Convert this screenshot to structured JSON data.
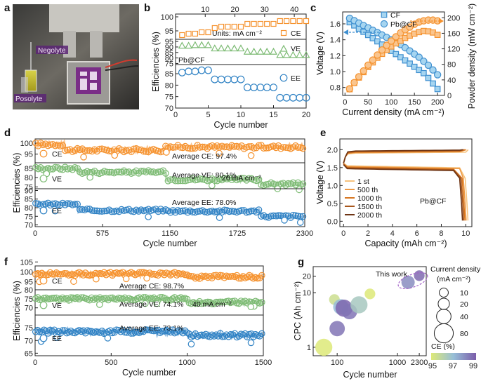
{
  "figure": {
    "panel_labels": [
      "a",
      "b",
      "c",
      "d",
      "e",
      "f",
      "g"
    ],
    "photo": {
      "negolyte_label": "Negolyte",
      "posolyte_label": "Posolyte"
    }
  },
  "colors": {
    "orange": "#F5922E",
    "green": "#7DBB74",
    "blue": "#2F82C4",
    "lightblue": "#9FD3EC",
    "purple": "#A15FC7"
  },
  "chart_data": [
    {
      "id": "b",
      "type": "scatter",
      "xlabel": "Cycle number",
      "ylabel": "Efficiencies (%)",
      "xlim": [
        0,
        20
      ],
      "xticks": [
        0,
        5,
        10,
        15,
        20
      ],
      "top_axis": {
        "ticks": [
          10,
          20,
          30,
          40
        ]
      },
      "units_text": "Units: mA cm⁻²",
      "sample_text": "Pb@CF",
      "subpanels": [
        {
          "name": "CE",
          "ylim": [
            92,
            101
          ],
          "yticks": [
            95,
            100
          ],
          "x": [
            1,
            2,
            3,
            4,
            5,
            6,
            7,
            8,
            9,
            10,
            11,
            12,
            13,
            14,
            15,
            16,
            17,
            18,
            19,
            20
          ],
          "y": [
            93.5,
            94,
            94,
            94.5,
            94.5,
            96,
            96.5,
            96.5,
            96.5,
            96.5,
            97.5,
            97.5,
            97.5,
            97.5,
            97.5,
            98.5,
            98.5,
            98.5,
            98.5,
            98.5
          ]
        },
        {
          "name": "VE",
          "ylim": [
            74,
            97
          ],
          "yticks": [
            75,
            80,
            85,
            90,
            95
          ],
          "x": [
            1,
            2,
            3,
            4,
            5,
            6,
            7,
            8,
            9,
            10,
            11,
            12,
            13,
            14,
            15,
            16,
            17,
            18,
            19,
            20
          ],
          "y": [
            91.5,
            91.5,
            92,
            92,
            92,
            89,
            89,
            89,
            89,
            89,
            86,
            86,
            86,
            86,
            86,
            83,
            83,
            83,
            83,
            83
          ]
        },
        {
          "name": "EE",
          "ylim": [
            70,
            89
          ],
          "yticks": [
            70,
            75,
            80,
            85
          ],
          "x": [
            1,
            2,
            3,
            4,
            5,
            6,
            7,
            8,
            9,
            10,
            11,
            12,
            13,
            14,
            15,
            16,
            17,
            18,
            19,
            20
          ],
          "y": [
            85.5,
            86,
            86,
            86.5,
            86.5,
            82.5,
            82.5,
            82.5,
            82.5,
            82.5,
            79,
            79,
            79,
            79,
            79,
            74.5,
            74.5,
            74.5,
            74.5,
            74.5
          ]
        }
      ]
    },
    {
      "id": "c",
      "type": "line",
      "xlabel": "Current density (mA cm⁻²)",
      "ylabel": "Voltage (V)",
      "y2label": "Powder density (mW cm⁻²)",
      "xlim": [
        -5,
        215
      ],
      "xticks": [
        0,
        50,
        100,
        150,
        200
      ],
      "ylim": [
        0.7,
        1.75
      ],
      "yticks": [
        0.8,
        1.0,
        1.2,
        1.4,
        1.6
      ],
      "y2lim": [
        0,
        215
      ],
      "y2ticks": [
        0,
        40,
        80,
        120,
        160,
        200
      ],
      "x": [
        10,
        20,
        30,
        40,
        50,
        60,
        70,
        80,
        90,
        100,
        110,
        120,
        130,
        140,
        150,
        160,
        170,
        180,
        190,
        200
      ],
      "series": [
        {
          "name": "CF",
          "y": [
            1.62,
            1.58,
            1.54,
            1.5,
            1.46,
            1.42,
            1.38,
            1.34,
            1.3,
            1.26,
            1.22,
            1.18,
            1.14,
            1.1,
            1.06,
            1.02,
            0.98,
            0.92,
            0.85,
            0.78
          ]
        },
        {
          "name": "Pb@CF",
          "y": [
            1.67,
            1.64,
            1.61,
            1.58,
            1.55,
            1.52,
            1.49,
            1.46,
            1.43,
            1.4,
            1.37,
            1.34,
            1.3,
            1.26,
            1.22,
            1.18,
            1.13,
            1.08,
            1.02,
            0.96
          ]
        },
        {
          "name": "CF power",
          "axis": "y2",
          "y": [
            16,
            32,
            46,
            60,
            73,
            85,
            97,
            107,
            117,
            126,
            134,
            141,
            148,
            154,
            159,
            163,
            166,
            165,
            162,
            156
          ]
        },
        {
          "name": "Pb@CF power",
          "axis": "y2",
          "y": [
            17,
            33,
            48,
            63,
            78,
            91,
            104,
            117,
            129,
            140,
            151,
            161,
            169,
            176,
            183,
            189,
            192,
            194,
            194,
            192
          ]
        }
      ]
    },
    {
      "id": "d",
      "type": "scatter",
      "xlabel": "Cycle number",
      "ylabel": "Efficiencies (%)",
      "xlim": [
        0,
        2300
      ],
      "xticks": [
        0,
        575,
        1150,
        1725,
        2300
      ],
      "rate_text": "20 mA cm⁻²",
      "subpanels": [
        {
          "name": "CE",
          "avg_text": "Average CE: 97.4%",
          "ylim": [
            91,
            102
          ],
          "yticks": [
            95,
            100
          ],
          "series_color": "orange"
        },
        {
          "name": "VE",
          "avg_text": "Average VE: 80.1%",
          "ylim": [
            74,
            88
          ],
          "yticks": [
            75,
            80,
            85
          ],
          "series_color": "green"
        },
        {
          "name": "EE",
          "avg_text": "Average  EE: 78.0%",
          "ylim": [
            69,
            91
          ],
          "yticks": [
            70,
            75,
            80,
            85,
            90
          ],
          "series_color": "blue"
        }
      ]
    },
    {
      "id": "e",
      "type": "line",
      "xlabel": "Capacity (mAh cm⁻²)",
      "ylabel": "Voltage (V)",
      "xlim": [
        -0.3,
        10.5
      ],
      "xticks": [
        0,
        2,
        4,
        6,
        8,
        10
      ],
      "ylim": [
        -0.15,
        2.3
      ],
      "yticks": [
        0.0,
        0.5,
        1.0,
        1.5,
        2.0
      ],
      "sample_text": "Pb@CF",
      "legend": [
        "1 st",
        "500 th",
        "1000 th",
        "1500 th",
        "2000 th"
      ],
      "series_colors": [
        "#F6C37E",
        "#EE9A45",
        "#D77620",
        "#A8561B",
        "#6E3414"
      ]
    },
    {
      "id": "f",
      "type": "scatter",
      "xlabel": "Cycle number",
      "ylabel": "Efficiencies (%)",
      "xlim": [
        0,
        1500
      ],
      "xticks": [
        0,
        500,
        1000,
        1500
      ],
      "rate_text": "40 mA cm⁻²",
      "subpanels": [
        {
          "name": "CE",
          "avg_text": "Average CE: 98.7%",
          "ylim": [
            91,
            103
          ],
          "yticks": [
            95,
            100,
            105
          ],
          "series_color": "orange"
        },
        {
          "name": "VE",
          "avg_text": "Average VE: 74.1%",
          "ylim": [
            66,
            80
          ],
          "yticks": [
            70,
            75,
            80
          ],
          "series_color": "green"
        },
        {
          "name": "EE",
          "avg_text": "Average  EE: 73.1%",
          "ylim": [
            64,
            80
          ],
          "yticks": [
            65,
            70,
            75
          ],
          "series_color": "blue"
        }
      ]
    },
    {
      "id": "g",
      "type": "scatter",
      "xlabel": "Cycle number",
      "ylabel": "CPC (Ah cm⁻²)",
      "xscale": "log",
      "yscale": "log",
      "xlim": [
        40,
        3000
      ],
      "xticks": [
        100,
        1000,
        2300
      ],
      "ylim": [
        0.7,
        30
      ],
      "yticks": [
        1,
        10,
        20
      ],
      "annotation": "This work",
      "size_legend_title": "Current density",
      "size_legend_unit": "(mA cm⁻²)",
      "size_legend": [
        10,
        20,
        40,
        80
      ],
      "color_legend_title": "CE (%)",
      "color_legend_ticks": [
        "95",
        "97",
        "99"
      ],
      "points": [
        {
          "x": 60,
          "y": 1.0,
          "size": 40,
          "ce": 95
        },
        {
          "x": 100,
          "y": 2.2,
          "size": 30,
          "ce": 98.5
        },
        {
          "x": 90,
          "y": 7.5,
          "size": 10,
          "ce": 95.5
        },
        {
          "x": 115,
          "y": 5.5,
          "size": 30,
          "ce": 97
        },
        {
          "x": 130,
          "y": 5.2,
          "size": 40,
          "ce": 98.8
        },
        {
          "x": 160,
          "y": 4.5,
          "size": 30,
          "ce": 98.5
        },
        {
          "x": 230,
          "y": 6.0,
          "size": 40,
          "ce": 96.5
        },
        {
          "x": 350,
          "y": 9.5,
          "size": 10,
          "ce": 95
        },
        {
          "x": 1500,
          "y": 15.5,
          "size": 20,
          "ce": 98
        },
        {
          "x": 2300,
          "y": 20.5,
          "size": 10,
          "ce": 98.7
        }
      ]
    }
  ]
}
